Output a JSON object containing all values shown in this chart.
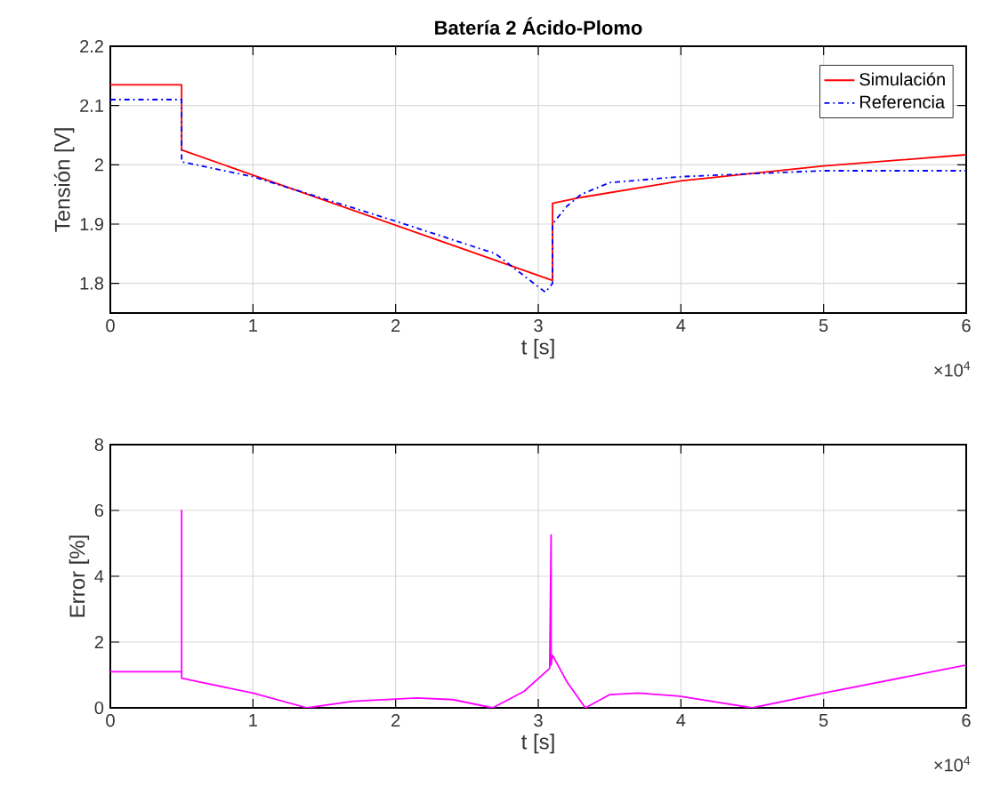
{
  "chart_data": [
    {
      "type": "line",
      "title": "Batería 2 Ácido-Plomo",
      "xlabel": "t [s]",
      "ylabel": "Tensión [V]",
      "xlim": [
        0,
        6
      ],
      "ylim": [
        1.75,
        2.2
      ],
      "xticks": [
        0,
        1,
        2,
        3,
        4,
        5,
        6
      ],
      "yticks": [
        1.8,
        1.9,
        2,
        2.1,
        2.2
      ],
      "grid": true,
      "legend": "top right",
      "annotations": [
        "×10$^{4}$"
      ],
      "series": [
        {
          "name": "Simulación",
          "color": "#ff0000",
          "line_style": "solid",
          "x": [
            0,
            0.5,
            0.5,
            3.1,
            3.1,
            3.3,
            4.0,
            5.0,
            6.0
          ],
          "values": [
            2.135,
            2.135,
            2.025,
            1.805,
            1.935,
            1.945,
            1.973,
            1.998,
            2.017
          ]
        },
        {
          "name": "Referencia",
          "color": "#0000ff",
          "line_style": "dashdot",
          "x": [
            0,
            0.5,
            0.5,
            1.0,
            2.0,
            2.7,
            3.05,
            3.1,
            3.1,
            3.2,
            3.3,
            3.5,
            4.0,
            4.5,
            5.0,
            6.0
          ],
          "values": [
            2.11,
            2.11,
            2.005,
            1.98,
            1.905,
            1.85,
            1.785,
            1.8,
            1.9,
            1.93,
            1.95,
            1.97,
            1.98,
            1.985,
            1.99,
            1.99
          ]
        }
      ]
    },
    {
      "type": "line",
      "xlabel": "t [s]",
      "ylabel": "Error [%]",
      "xlim": [
        0,
        6
      ],
      "ylim": [
        0,
        8
      ],
      "xticks": [
        0,
        1,
        2,
        3,
        4,
        5,
        6
      ],
      "yticks": [
        0,
        2,
        4,
        6,
        8
      ],
      "grid": true,
      "annotations": [
        "×10$^{4}$"
      ],
      "series": [
        {
          "color": "#ff00ff",
          "line_style": "solid",
          "x": [
            0,
            0.5,
            0.5,
            0.5,
            1.0,
            1.38,
            1.7,
            2.15,
            2.4,
            2.68,
            2.9,
            3.08,
            3.09,
            3.09,
            3.1,
            3.2,
            3.33,
            3.5,
            3.7,
            4.0,
            4.5,
            5.0,
            6.0
          ],
          "values": [
            1.1,
            1.1,
            6.0,
            0.9,
            0.45,
            0,
            0.2,
            0.3,
            0.25,
            0,
            0.5,
            1.2,
            5.25,
            1.3,
            1.6,
            0.8,
            0,
            0.4,
            0.45,
            0.35,
            0,
            0.45,
            1.3
          ]
        }
      ]
    }
  ]
}
